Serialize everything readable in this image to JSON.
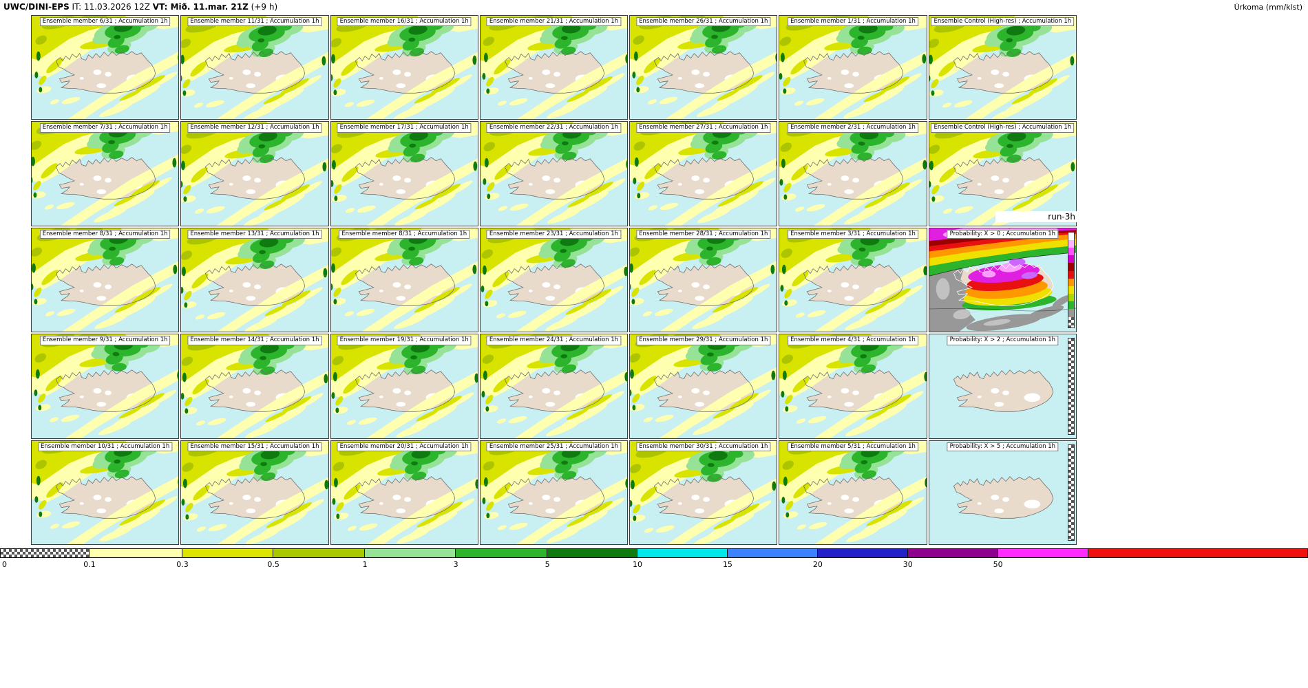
{
  "header": {
    "model": "UWC/DINI-EPS",
    "init_label": "IT: 11.03.2026 12Z",
    "valid_label": "VT: Mið. 11.mar. 21Z",
    "offset_label": "(+9 h)",
    "unit_label": "Úrkoma (mm/klst)"
  },
  "annotations": {
    "run_label": "run-3h"
  },
  "panels": [
    {
      "id": "r1c1",
      "title": "Ensemble member 6/31 ; Accumulation 1h",
      "type": "member",
      "seed": 6
    },
    {
      "id": "r1c2",
      "title": "Ensemble member 11/31 ; Accumulation 1h",
      "type": "member",
      "seed": 11
    },
    {
      "id": "r1c3",
      "title": "Ensemble member 16/31 ; Accumulation 1h",
      "type": "member",
      "seed": 16
    },
    {
      "id": "r1c4",
      "title": "Ensemble member 21/31 ; Accumulation 1h",
      "type": "member",
      "seed": 21
    },
    {
      "id": "r1c5",
      "title": "Ensemble member 26/31 ; Accumulation 1h",
      "type": "member",
      "seed": 26
    },
    {
      "id": "r1c6",
      "title": "Ensemble member 1/31 ; Accumulation 1h",
      "type": "member",
      "seed": 1
    },
    {
      "id": "r1c7",
      "title": "Ensemble Control (High-res) ; Accumulation 1h",
      "type": "control",
      "seed": 32
    },
    {
      "id": "r2c1",
      "title": "Ensemble member 7/31 ; Accumulation 1h",
      "type": "member",
      "seed": 7
    },
    {
      "id": "r2c2",
      "title": "Ensemble member 12/31 ; Accumulation 1h",
      "type": "member",
      "seed": 12
    },
    {
      "id": "r2c3",
      "title": "Ensemble member 17/31 ; Accumulation 1h",
      "type": "member",
      "seed": 17
    },
    {
      "id": "r2c4",
      "title": "Ensemble member 22/31 ; Accumulation 1h",
      "type": "member",
      "seed": 22
    },
    {
      "id": "r2c5",
      "title": "Ensemble member 27/31 ; Accumulation 1h",
      "type": "member",
      "seed": 27
    },
    {
      "id": "r2c6",
      "title": "Ensemble member 2/31 ; Accumulation 1h",
      "type": "member",
      "seed": 2
    },
    {
      "id": "r2c7",
      "title": "Ensemble Control (High-res) ; Accumulation 1h",
      "type": "control",
      "seed": 33
    },
    {
      "id": "r3c1",
      "title": "Ensemble member 8/31 ; Accumulation 1h",
      "type": "member",
      "seed": 8
    },
    {
      "id": "r3c2",
      "title": "Ensemble member 13/31 ; Accumulation 1h",
      "type": "member",
      "seed": 13
    },
    {
      "id": "r3c3",
      "title": "Ensemble member 8/31 ; Accumulation 1h",
      "type": "member",
      "seed": 8
    },
    {
      "id": "r3c4",
      "title": "Ensemble member 23/31 ; Accumulation 1h",
      "type": "member",
      "seed": 23
    },
    {
      "id": "r3c5",
      "title": "Ensemble member 28/31 ; Accumulation 1h",
      "type": "member",
      "seed": 28
    },
    {
      "id": "r3c6",
      "title": "Ensemble member 3/31 ; Accumulation 1h",
      "type": "member",
      "seed": 3
    },
    {
      "id": "r3c7",
      "title": "Probability: X > 0 ; Accumulation 1h",
      "type": "prob0"
    },
    {
      "id": "r4c1",
      "title": "Ensemble member 9/31 ; Accumulation 1h",
      "type": "member",
      "seed": 9
    },
    {
      "id": "r4c2",
      "title": "Ensemble member 14/31 ; Accumulation 1h",
      "type": "member",
      "seed": 14
    },
    {
      "id": "r4c3",
      "title": "Ensemble member 19/31 ; Accumulation 1h",
      "type": "member",
      "seed": 19
    },
    {
      "id": "r4c4",
      "title": "Ensemble member 24/31 ; Accumulation 1h",
      "type": "member",
      "seed": 24
    },
    {
      "id": "r4c5",
      "title": "Ensemble member 29/31 ; Accumulation 1h",
      "type": "member",
      "seed": 29
    },
    {
      "id": "r4c6",
      "title": "Ensemble member 4/31 ; Accumulation 1h",
      "type": "member",
      "seed": 4
    },
    {
      "id": "r4c7",
      "title": "Probability: X > 2 ; Accumulation 1h",
      "type": "prob2"
    },
    {
      "id": "r5c1",
      "title": "Ensemble member 10/31 ; Accumulation 1h",
      "type": "member",
      "seed": 10
    },
    {
      "id": "r5c2",
      "title": "Ensemble member 15/31 ; Accumulation 1h",
      "type": "member",
      "seed": 15
    },
    {
      "id": "r5c3",
      "title": "Ensemble member 20/31 ; Accumulation 1h",
      "type": "member",
      "seed": 20
    },
    {
      "id": "r5c4",
      "title": "Ensemble member 25/31 ; Accumulation 1h",
      "type": "member",
      "seed": 25
    },
    {
      "id": "r5c5",
      "title": "Ensemble member 30/31 ; Accumulation 1h",
      "type": "member",
      "seed": 30
    },
    {
      "id": "r5c6",
      "title": "Ensemble member 5/31 ; Accumulation 1h",
      "type": "member",
      "seed": 5
    },
    {
      "id": "r5c7",
      "title": "Probability: X > 5 ; Accumulation 1h",
      "type": "prob5"
    }
  ],
  "legend": {
    "segments": [
      {
        "label": "0",
        "color": "checker",
        "width_pct": 6.84
      },
      {
        "label": "0.1",
        "color": "#ffffb0",
        "width_pct": 7.11
      },
      {
        "label": "0.3",
        "color": "#dce400",
        "width_pct": 6.95
      },
      {
        "label": "0.5",
        "color": "#a9c800",
        "width_pct": 7.0
      },
      {
        "label": "1",
        "color": "#96e296",
        "width_pct": 6.95
      },
      {
        "label": "3",
        "color": "#2cb42c",
        "width_pct": 7.0
      },
      {
        "label": "5",
        "color": "#0f7a0f",
        "width_pct": 6.89
      },
      {
        "label": "10",
        "color": "#00e8e8",
        "width_pct": 6.89
      },
      {
        "label": "15",
        "color": "#3c82ff",
        "width_pct": 6.89
      },
      {
        "label": "20",
        "color": "#2222c8",
        "width_pct": 6.89
      },
      {
        "label": "30",
        "color": "#90008f",
        "width_pct": 6.89
      },
      {
        "label": "50",
        "color": "#ff2cff",
        "width_pct": 6.89
      },
      {
        "label": "",
        "color": "#f01010",
        "width_pct": 16.81
      }
    ]
  },
  "prob_colorbar": [
    "#ffffff",
    "#ffb4ff",
    "#ff50ff",
    "#d400d4",
    "#9c0000",
    "#e01010",
    "#ff9800",
    "#f0e000",
    "#a8d800",
    "#2cb42c",
    "#989898"
  ],
  "palette": {
    "sea": "#c8eff2",
    "land": "#e9dbcb",
    "glacier": "#ffffff",
    "coast": "#6f6f6f",
    "precip": {
      "pale_yellow": "#ffffb0",
      "yellow_green": "#d8e400",
      "olive": "#adc400",
      "light_green": "#96e296",
      "green": "#2cb42c",
      "dark_green": "#0f7a0f"
    },
    "prob": {
      "gray": "#989898",
      "light_gray": "#c2c2c2",
      "green": "#2cb42c",
      "yellow": "#f0e000",
      "orange": "#ff9800",
      "red": "#e81010",
      "dark_red": "#9c0000",
      "magenta": "#e020e0",
      "pink": "#ff9cff",
      "violet": "#cc66ff"
    }
  }
}
